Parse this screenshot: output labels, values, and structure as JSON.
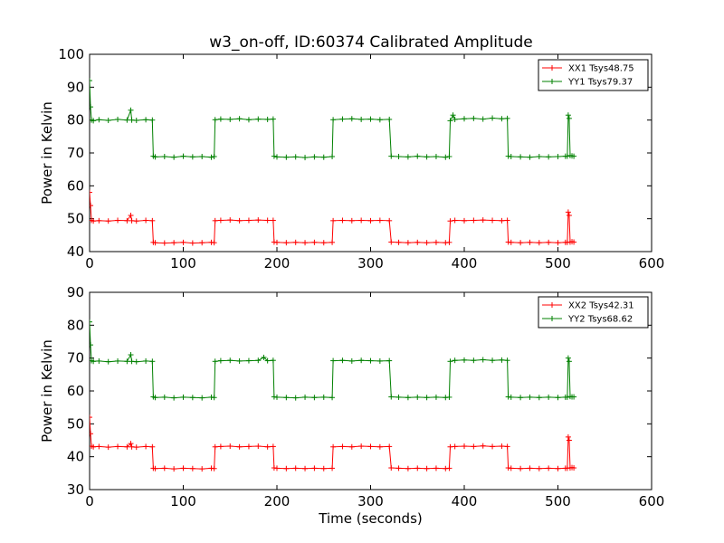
{
  "title": "w3_on-off, ID:60374 Calibrated Amplitude",
  "colors": {
    "xx": "#ff0000",
    "yy": "#008000",
    "axes": "#000000",
    "background": "#ffffff"
  },
  "chart_data": [
    {
      "type": "line",
      "title": "w3_on-off, ID:60374 Calibrated Amplitude",
      "xlabel": "",
      "ylabel": "Power in Kelvin",
      "xlim": [
        0,
        600
      ],
      "ylim": [
        40,
        100
      ],
      "xticks": [
        "0",
        "100",
        "200",
        "300",
        "400",
        "500",
        "600"
      ],
      "yticks": [
        "40",
        "50",
        "60",
        "70",
        "80",
        "90",
        "100"
      ],
      "grid": false,
      "legend": "top-right",
      "series": [
        {
          "name": "XX1 Tsys48.75",
          "color": "#ff0000",
          "x": [
            0,
            1,
            2,
            4,
            10,
            20,
            30,
            40,
            44,
            45,
            50,
            60,
            67,
            68,
            70,
            80,
            90,
            100,
            110,
            120,
            130,
            133,
            134,
            140,
            150,
            160,
            170,
            180,
            190,
            196,
            197,
            200,
            210,
            220,
            230,
            240,
            250,
            259,
            260,
            270,
            280,
            290,
            300,
            310,
            320,
            322,
            330,
            340,
            350,
            360,
            370,
            380,
            384,
            385,
            390,
            400,
            410,
            420,
            430,
            440,
            446,
            447,
            450,
            460,
            470,
            480,
            490,
            500,
            508,
            510,
            511,
            512,
            513,
            515,
            517
          ],
          "y": [
            58,
            54,
            49.5,
            49.3,
            49.4,
            49.3,
            49.5,
            49.4,
            51,
            49.4,
            49.3,
            49.5,
            49.4,
            42.8,
            42.7,
            42.6,
            42.7,
            42.8,
            42.6,
            42.7,
            42.8,
            42.7,
            49.4,
            49.5,
            49.6,
            49.4,
            49.5,
            49.6,
            49.5,
            49.5,
            42.9,
            42.8,
            42.7,
            42.8,
            42.7,
            42.8,
            42.7,
            42.8,
            49.4,
            49.5,
            49.4,
            49.5,
            49.4,
            49.5,
            49.4,
            42.9,
            42.8,
            42.7,
            42.8,
            42.7,
            42.8,
            42.7,
            42.8,
            49.3,
            49.5,
            49.4,
            49.5,
            49.6,
            49.5,
            49.4,
            49.5,
            42.9,
            42.8,
            42.7,
            42.8,
            42.7,
            42.8,
            42.7,
            42.8,
            42.8,
            52,
            51,
            42.9,
            43,
            42.9
          ]
        },
        {
          "name": "YY1 Tsys79.37",
          "color": "#008000",
          "x": [
            0,
            1,
            2,
            4,
            10,
            20,
            30,
            40,
            44,
            45,
            50,
            60,
            67,
            68,
            70,
            80,
            90,
            100,
            110,
            120,
            130,
            133,
            134,
            140,
            150,
            160,
            170,
            180,
            190,
            196,
            197,
            200,
            210,
            220,
            230,
            240,
            250,
            259,
            260,
            270,
            280,
            290,
            300,
            310,
            320,
            322,
            330,
            340,
            350,
            360,
            370,
            380,
            384,
            385,
            388,
            390,
            400,
            410,
            420,
            430,
            440,
            446,
            447,
            450,
            460,
            470,
            480,
            490,
            500,
            508,
            510,
            511,
            512,
            513,
            515,
            517
          ],
          "y": [
            92,
            84,
            80,
            79.8,
            80.1,
            79.9,
            80.2,
            80,
            83,
            80,
            79.9,
            80.1,
            80,
            69,
            68.8,
            68.9,
            68.7,
            69,
            68.8,
            68.9,
            68.7,
            68.9,
            80.1,
            80.3,
            80.2,
            80.4,
            80.1,
            80.3,
            80.2,
            80.3,
            69,
            68.8,
            68.7,
            68.8,
            68.6,
            68.8,
            68.7,
            68.9,
            80.1,
            80.3,
            80.4,
            80.2,
            80.3,
            80.1,
            80.2,
            69,
            68.9,
            68.8,
            69,
            68.8,
            68.9,
            68.7,
            68.9,
            79.8,
            81.5,
            80.2,
            80.4,
            80.5,
            80.3,
            80.6,
            80.4,
            80.5,
            69,
            68.9,
            68.8,
            68.7,
            68.9,
            68.8,
            68.9,
            69,
            69,
            81.5,
            80.5,
            69.2,
            69.1,
            69
          ]
        }
      ]
    },
    {
      "type": "line",
      "title": "",
      "xlabel": "Time (seconds)",
      "ylabel": "Power in Kelvin",
      "xlim": [
        0,
        600
      ],
      "ylim": [
        30,
        90
      ],
      "xticks": [
        "0",
        "100",
        "200",
        "300",
        "400",
        "500",
        "600"
      ],
      "yticks": [
        "30",
        "40",
        "50",
        "60",
        "70",
        "80",
        "90"
      ],
      "grid": false,
      "legend": "top-right",
      "series": [
        {
          "name": "XX2 Tsys42.31",
          "color": "#ff0000",
          "x": [
            0,
            1,
            2,
            4,
            10,
            20,
            30,
            40,
            44,
            45,
            50,
            60,
            67,
            68,
            70,
            80,
            90,
            100,
            110,
            120,
            130,
            133,
            134,
            140,
            150,
            160,
            170,
            180,
            190,
            196,
            197,
            200,
            210,
            220,
            230,
            240,
            250,
            259,
            260,
            270,
            280,
            290,
            300,
            310,
            320,
            322,
            330,
            340,
            350,
            360,
            370,
            380,
            384,
            385,
            390,
            400,
            410,
            420,
            430,
            440,
            446,
            447,
            450,
            460,
            470,
            480,
            490,
            500,
            508,
            510,
            511,
            512,
            513,
            515,
            517
          ],
          "y": [
            52,
            47,
            43.2,
            43,
            43.1,
            42.9,
            43.1,
            43,
            44,
            43,
            42.9,
            43.1,
            43,
            36.5,
            36.4,
            36.5,
            36.3,
            36.5,
            36.4,
            36.3,
            36.5,
            36.4,
            43,
            43.1,
            43.2,
            43,
            43.1,
            43.2,
            43,
            43.1,
            36.6,
            36.5,
            36.4,
            36.5,
            36.4,
            36.5,
            36.4,
            36.5,
            43,
            43.1,
            43,
            43.2,
            43.1,
            43,
            43.1,
            36.6,
            36.5,
            36.4,
            36.5,
            36.4,
            36.5,
            36.4,
            36.5,
            43,
            43.1,
            43.2,
            43.1,
            43.3,
            43.1,
            43.2,
            43.1,
            36.6,
            36.5,
            36.4,
            36.5,
            36.4,
            36.5,
            36.4,
            36.5,
            36.5,
            46,
            45,
            36.6,
            36.7,
            36.6
          ]
        },
        {
          "name": "YY2 Tsys68.62",
          "color": "#008000",
          "x": [
            0,
            1,
            2,
            4,
            10,
            20,
            30,
            40,
            44,
            45,
            50,
            60,
            67,
            68,
            70,
            80,
            90,
            100,
            110,
            120,
            130,
            133,
            134,
            140,
            150,
            160,
            170,
            180,
            186,
            190,
            196,
            197,
            200,
            210,
            220,
            230,
            240,
            250,
            259,
            260,
            270,
            280,
            290,
            300,
            310,
            320,
            322,
            330,
            340,
            350,
            360,
            370,
            380,
            384,
            385,
            390,
            400,
            410,
            420,
            430,
            440,
            446,
            447,
            450,
            460,
            470,
            480,
            490,
            500,
            508,
            510,
            511,
            512,
            513,
            515,
            517
          ],
          "y": [
            81,
            74,
            69.2,
            69,
            69.1,
            68.9,
            69.1,
            69,
            71,
            69,
            68.9,
            69.1,
            69,
            58.2,
            58,
            58.1,
            57.9,
            58.1,
            58,
            57.9,
            58.1,
            58,
            69,
            69.2,
            69.3,
            69.1,
            69.2,
            69.3,
            70.2,
            69.2,
            69.3,
            58.2,
            58.1,
            58,
            57.9,
            58.1,
            58,
            58.1,
            58,
            69.2,
            69.3,
            69.1,
            69.3,
            69.2,
            69.1,
            69.2,
            58.2,
            58.1,
            58,
            58.1,
            58,
            58.1,
            58,
            58.1,
            69,
            69.3,
            69.4,
            69.3,
            69.5,
            69.3,
            69.4,
            69.3,
            58.2,
            58.1,
            58,
            58.1,
            58,
            58.1,
            58,
            58.1,
            58.1,
            70,
            69,
            58.3,
            58.2,
            58.2
          ]
        }
      ]
    }
  ]
}
